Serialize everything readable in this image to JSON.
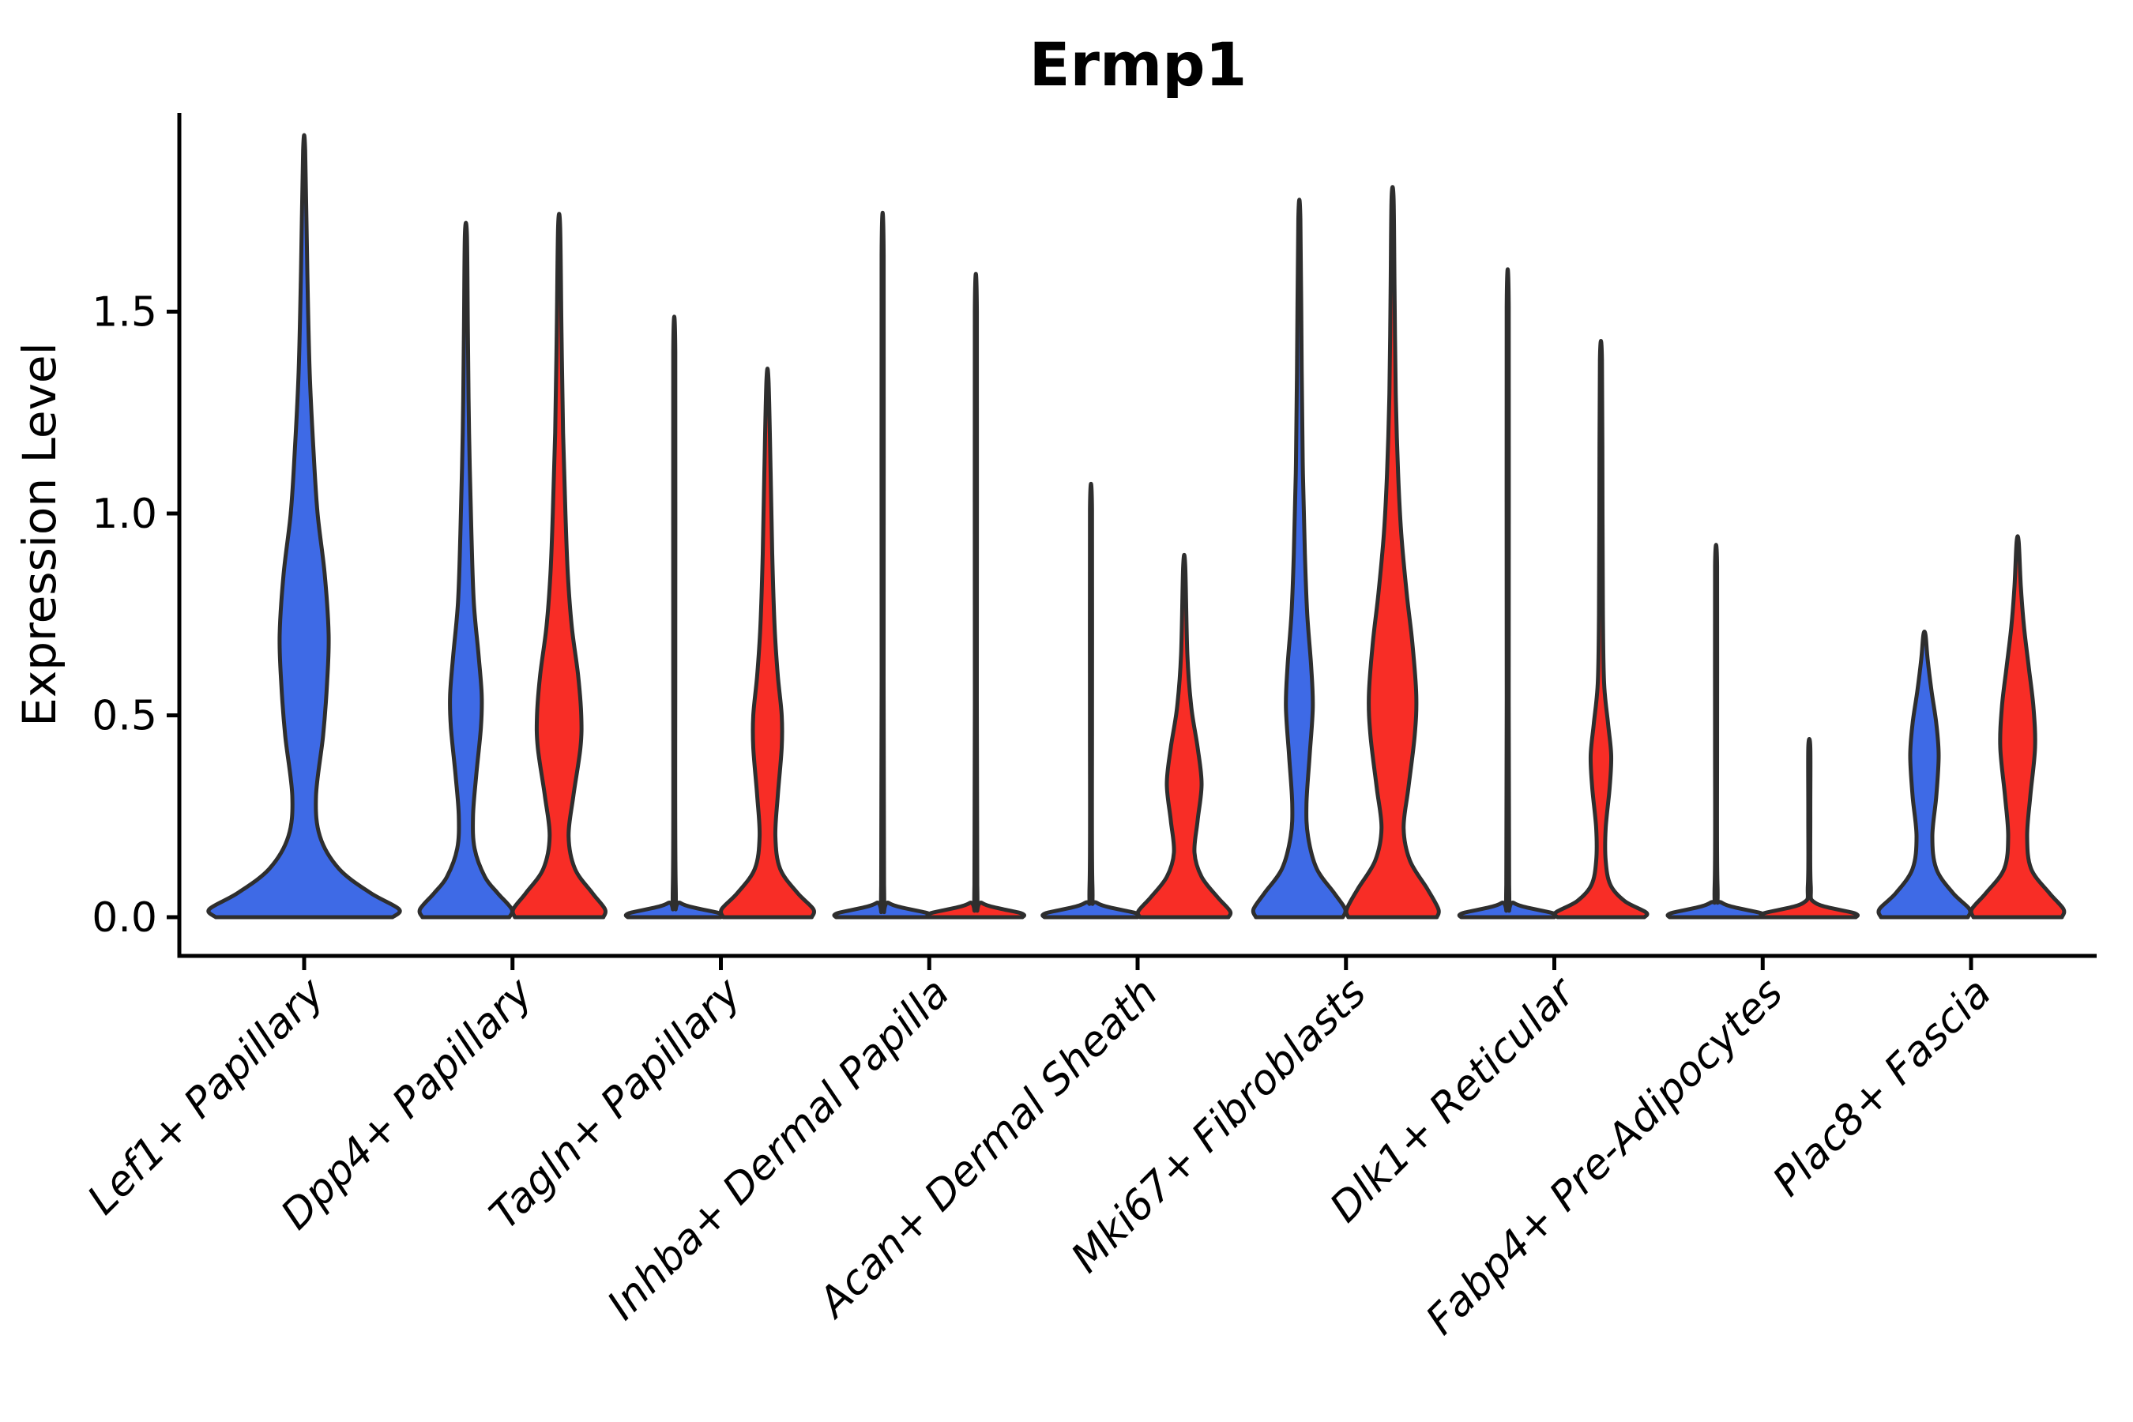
{
  "title": "Ermp1",
  "axes": {
    "ylabel": "Expression Level",
    "ytick_labels": [
      "0.0",
      "0.5",
      "1.0",
      "1.5"
    ]
  },
  "colors": {
    "series_blue": "#3E6AE6",
    "series_red": "#F82D26",
    "outline": "#2E2E2E",
    "axis": "#000000",
    "background": "#FFFFFF"
  },
  "chart_data": {
    "type": "violin",
    "title": "Ermp1",
    "xlabel": "",
    "ylabel": "Expression Level",
    "ylim": [
      -0.096,
      1.99
    ],
    "yticks": [
      0,
      0.5,
      1,
      1.5
    ],
    "grid": false,
    "legend_position": "none",
    "categories": [
      "Lef1+ Papillary",
      "Dpp4+ Papillary",
      "Tagln+ Papillary",
      "Inhba+ Dermal Papilla",
      "Acan+ Dermal Sheath",
      "Mki67+ Fibroblasts",
      "Dlk1+ Reticular",
      "Fabp4+ Pre-Adipocytes",
      "Plac8+ Fascia"
    ],
    "series_names": [
      "blue-condition",
      "red-condition"
    ],
    "series_colors": [
      "#3E6AE6",
      "#F82D26"
    ],
    "violin_max_expression": {
      "blue": [
        1.9,
        1.69,
        1.4,
        1.64,
        1.01,
        1.73,
        1.51,
        0.87,
        0.7
      ],
      "red": [
        null,
        1.71,
        1.33,
        1.5,
        0.87,
        1.78,
        1.38,
        0.42,
        0.93
      ]
    },
    "violins": [
      {
        "category": 0,
        "series": 0,
        "span": "full",
        "max": 1.9,
        "profile": [
          [
            0,
            112
          ],
          [
            0.02,
            120
          ],
          [
            0.06,
            84
          ],
          [
            0.12,
            44
          ],
          [
            0.2,
            20
          ],
          [
            0.3,
            15
          ],
          [
            0.45,
            24
          ],
          [
            0.58,
            29
          ],
          [
            0.7,
            31
          ],
          [
            0.85,
            26
          ],
          [
            1.0,
            17
          ],
          [
            1.15,
            12
          ],
          [
            1.35,
            7
          ],
          [
            1.6,
            4
          ],
          [
            1.9,
            1.3
          ]
        ]
      },
      {
        "category": 1,
        "series": 0,
        "span": "half",
        "max": 1.69,
        "profile": [
          [
            0,
            55
          ],
          [
            0.02,
            58
          ],
          [
            0.06,
            40
          ],
          [
            0.1,
            24
          ],
          [
            0.17,
            11
          ],
          [
            0.25,
            9
          ],
          [
            0.35,
            13
          ],
          [
            0.47,
            19
          ],
          [
            0.55,
            20
          ],
          [
            0.65,
            16
          ],
          [
            0.78,
            10
          ],
          [
            0.95,
            7
          ],
          [
            1.2,
            4
          ],
          [
            1.45,
            2.5
          ],
          [
            1.69,
            1.3
          ]
        ]
      },
      {
        "category": 1,
        "series": 1,
        "span": "half",
        "max": 1.71,
        "profile": [
          [
            0,
            56
          ],
          [
            0.02,
            58
          ],
          [
            0.06,
            42
          ],
          [
            0.12,
            20
          ],
          [
            0.2,
            12
          ],
          [
            0.3,
            18
          ],
          [
            0.42,
            27
          ],
          [
            0.5,
            28
          ],
          [
            0.6,
            24
          ],
          [
            0.72,
            16
          ],
          [
            0.85,
            11
          ],
          [
            1.0,
            8
          ],
          [
            1.2,
            5
          ],
          [
            1.45,
            3
          ],
          [
            1.71,
            1.3
          ]
        ]
      },
      {
        "category": 2,
        "series": 0,
        "span": "half",
        "max": 1.4,
        "profile": [
          [
            0,
            59
          ],
          [
            0.01,
            57
          ],
          [
            0.035,
            8
          ],
          [
            0.08,
            1.8
          ],
          [
            0.7,
            1.3
          ],
          [
            1.4,
            1.3
          ]
        ]
      },
      {
        "category": 2,
        "series": 1,
        "span": "half",
        "max": 1.33,
        "profile": [
          [
            0,
            56
          ],
          [
            0.02,
            58
          ],
          [
            0.06,
            38
          ],
          [
            0.12,
            16
          ],
          [
            0.2,
            10
          ],
          [
            0.3,
            13
          ],
          [
            0.42,
            18
          ],
          [
            0.5,
            18
          ],
          [
            0.6,
            13
          ],
          [
            0.72,
            9
          ],
          [
            0.9,
            6
          ],
          [
            1.1,
            4
          ],
          [
            1.33,
            1.3
          ]
        ]
      },
      {
        "category": 3,
        "series": 0,
        "span": "half",
        "max": 1.64,
        "profile": [
          [
            0,
            59
          ],
          [
            0.01,
            57
          ],
          [
            0.035,
            8
          ],
          [
            0.08,
            1.8
          ],
          [
            0.8,
            1.3
          ],
          [
            1.64,
            1.3
          ]
        ]
      },
      {
        "category": 3,
        "series": 1,
        "span": "half",
        "max": 1.5,
        "profile": [
          [
            0,
            59
          ],
          [
            0.01,
            57
          ],
          [
            0.035,
            8
          ],
          [
            0.08,
            1.8
          ],
          [
            0.75,
            1.3
          ],
          [
            1.5,
            1.3
          ]
        ]
      },
      {
        "category": 4,
        "series": 0,
        "span": "half",
        "max": 1.01,
        "profile": [
          [
            0,
            59
          ],
          [
            0.01,
            57
          ],
          [
            0.035,
            8
          ],
          [
            0.08,
            1.8
          ],
          [
            0.5,
            1.3
          ],
          [
            1.01,
            1.3
          ]
        ]
      },
      {
        "category": 4,
        "series": 1,
        "span": "half",
        "max": 0.87,
        "profile": [
          [
            0,
            56
          ],
          [
            0.015,
            58
          ],
          [
            0.05,
            42
          ],
          [
            0.1,
            22
          ],
          [
            0.16,
            13
          ],
          [
            0.24,
            17
          ],
          [
            0.33,
            22
          ],
          [
            0.42,
            17
          ],
          [
            0.52,
            9
          ],
          [
            0.65,
            4
          ],
          [
            0.87,
            1.3
          ]
        ]
      },
      {
        "category": 5,
        "series": 0,
        "span": "half",
        "max": 1.73,
        "profile": [
          [
            0,
            55
          ],
          [
            0.02,
            58
          ],
          [
            0.06,
            44
          ],
          [
            0.12,
            22
          ],
          [
            0.2,
            11
          ],
          [
            0.28,
            9
          ],
          [
            0.4,
            13
          ],
          [
            0.52,
            17
          ],
          [
            0.62,
            15
          ],
          [
            0.75,
            10
          ],
          [
            0.9,
            7
          ],
          [
            1.1,
            4.5
          ],
          [
            1.35,
            3
          ],
          [
            1.73,
            1.3
          ]
        ]
      },
      {
        "category": 5,
        "series": 1,
        "span": "half",
        "max": 1.78,
        "profile": [
          [
            0,
            56
          ],
          [
            0.02,
            58
          ],
          [
            0.07,
            44
          ],
          [
            0.14,
            22
          ],
          [
            0.22,
            14
          ],
          [
            0.32,
            20
          ],
          [
            0.45,
            28
          ],
          [
            0.55,
            30
          ],
          [
            0.68,
            25
          ],
          [
            0.8,
            18
          ],
          [
            0.95,
            11
          ],
          [
            1.1,
            7
          ],
          [
            1.3,
            4
          ],
          [
            1.55,
            2.5
          ],
          [
            1.78,
            1.3
          ]
        ]
      },
      {
        "category": 6,
        "series": 0,
        "span": "half",
        "max": 1.51,
        "profile": [
          [
            0,
            59
          ],
          [
            0.01,
            57
          ],
          [
            0.035,
            8
          ],
          [
            0.08,
            1.8
          ],
          [
            0.75,
            1.3
          ],
          [
            1.51,
            1.3
          ]
        ]
      },
      {
        "category": 6,
        "series": 1,
        "span": "half",
        "max": 1.38,
        "profile": [
          [
            0,
            55
          ],
          [
            0.012,
            57
          ],
          [
            0.04,
            30
          ],
          [
            0.08,
            12
          ],
          [
            0.14,
            6
          ],
          [
            0.22,
            6
          ],
          [
            0.32,
            11
          ],
          [
            0.4,
            13
          ],
          [
            0.48,
            9
          ],
          [
            0.58,
            4
          ],
          [
            0.75,
            2.5
          ],
          [
            1.0,
            2
          ],
          [
            1.38,
            1.3
          ]
        ]
      },
      {
        "category": 7,
        "series": 0,
        "span": "half",
        "max": 0.87,
        "profile": [
          [
            0,
            59
          ],
          [
            0.01,
            57
          ],
          [
            0.035,
            8
          ],
          [
            0.08,
            1.8
          ],
          [
            0.45,
            1.3
          ],
          [
            0.87,
            1.3
          ]
        ]
      },
      {
        "category": 7,
        "series": 1,
        "span": "half",
        "max": 0.42,
        "profile": [
          [
            0,
            59
          ],
          [
            0.01,
            57
          ],
          [
            0.035,
            8
          ],
          [
            0.08,
            1.8
          ],
          [
            0.25,
            1.3
          ],
          [
            0.42,
            1.3
          ]
        ]
      },
      {
        "category": 8,
        "series": 0,
        "span": "half",
        "max": 0.7,
        "profile": [
          [
            0,
            55
          ],
          [
            0.02,
            57
          ],
          [
            0.06,
            36
          ],
          [
            0.12,
            15
          ],
          [
            0.2,
            10
          ],
          [
            0.3,
            15
          ],
          [
            0.4,
            18
          ],
          [
            0.48,
            15
          ],
          [
            0.56,
            9
          ],
          [
            0.64,
            4
          ],
          [
            0.7,
            1.3
          ]
        ]
      },
      {
        "category": 8,
        "series": 1,
        "span": "half",
        "max": 0.93,
        "profile": [
          [
            0,
            56
          ],
          [
            0.02,
            58
          ],
          [
            0.06,
            40
          ],
          [
            0.12,
            17
          ],
          [
            0.2,
            12
          ],
          [
            0.3,
            16
          ],
          [
            0.42,
            22
          ],
          [
            0.52,
            20
          ],
          [
            0.62,
            14
          ],
          [
            0.72,
            8
          ],
          [
            0.82,
            4
          ],
          [
            0.93,
            1.3
          ]
        ]
      }
    ]
  }
}
